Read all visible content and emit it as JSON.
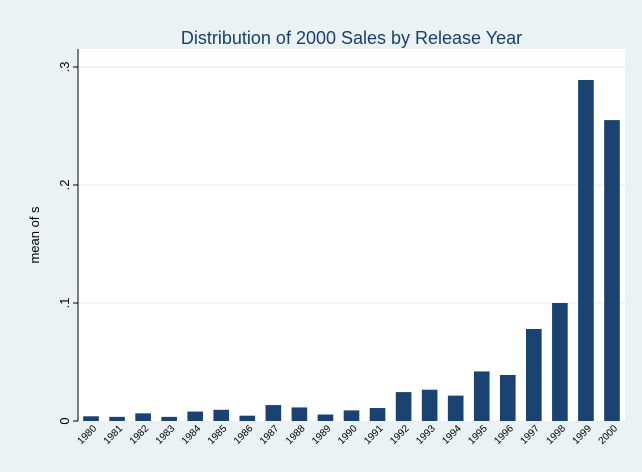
{
  "chart_data": {
    "type": "bar",
    "title": "Distribution of 2000 Sales by Release Year",
    "xlabel": "",
    "ylabel": "mean of s",
    "ylim": [
      0,
      0.3
    ],
    "yticks": [
      {
        "value": 0,
        "label": "0"
      },
      {
        "value": 0.1,
        "label": ".1"
      },
      {
        "value": 0.2,
        "label": ".2"
      },
      {
        "value": 0.3,
        "label": ".3"
      }
    ],
    "grid": true,
    "categories": [
      "1980",
      "1981",
      "1982",
      "1983",
      "1984",
      "1985",
      "1986",
      "1987",
      "1988",
      "1989",
      "1990",
      "1991",
      "1992",
      "1993",
      "1994",
      "1995",
      "1996",
      "1997",
      "1998",
      "1999",
      "2000"
    ],
    "values": [
      0.004,
      0.0035,
      0.0065,
      0.0035,
      0.008,
      0.0095,
      0.0045,
      0.0135,
      0.0115,
      0.0055,
      0.009,
      0.011,
      0.0245,
      0.0265,
      0.0215,
      0.042,
      0.039,
      0.078,
      0.1,
      0.289,
      0.255
    ],
    "bar_color": "#1b4371",
    "plot_background": "#ffffff",
    "page_background": "#eaf2f3"
  }
}
